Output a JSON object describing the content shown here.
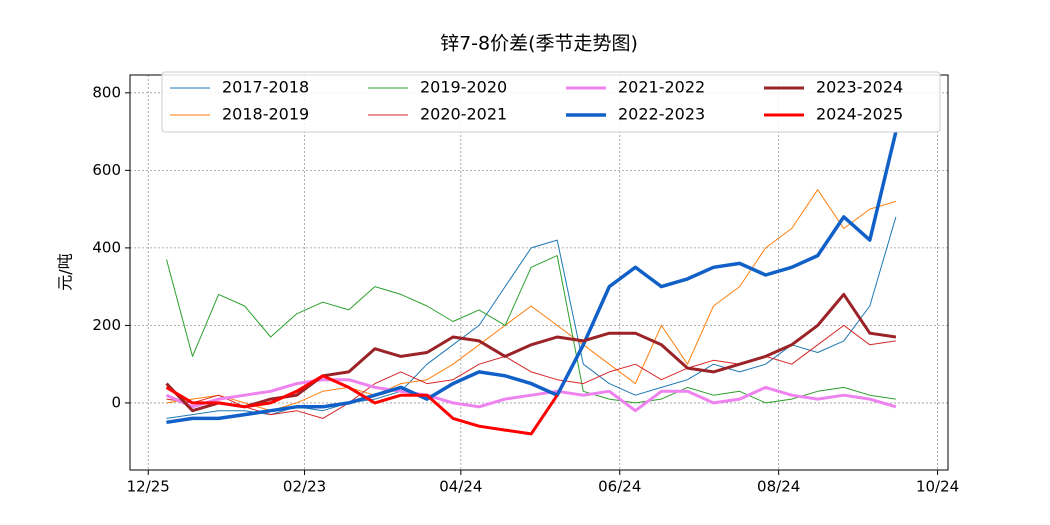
{
  "chart_data": {
    "type": "line",
    "title": "锌7-8价差(季节走势图)",
    "y_label": "元/吨",
    "x": [
      7,
      17,
      27,
      37,
      47,
      57,
      67,
      77,
      87,
      97,
      107,
      117,
      127,
      137,
      147,
      157,
      167,
      177,
      187,
      197,
      207,
      217,
      227,
      237,
      247,
      257,
      267,
      277,
      287
    ],
    "xlim": [
      -7,
      307
    ],
    "xticks": [
      {
        "value": 0,
        "label": "12/25"
      },
      {
        "value": 60,
        "label": "02/23"
      },
      {
        "value": 120,
        "label": "04/24"
      },
      {
        "value": 181,
        "label": "06/24"
      },
      {
        "value": 242,
        "label": "08/24"
      },
      {
        "value": 303,
        "label": "10/24"
      }
    ],
    "ylim": [
      -173,
      846
    ],
    "yticks": [
      0,
      200,
      400,
      600,
      800
    ],
    "grid": true,
    "legend": "upper center",
    "series": [
      {
        "name": "2017-2018",
        "color": "#1f77b4",
        "linewidth": 1,
        "values": [
          -40,
          -30,
          -20,
          -20,
          -30,
          -10,
          -20,
          0,
          10,
          30,
          100,
          150,
          200,
          300,
          400,
          420,
          100,
          50,
          20,
          40,
          60,
          100,
          80,
          100,
          150,
          130,
          160,
          250,
          480
        ]
      },
      {
        "name": "2018-2019",
        "color": "#ff7f0e",
        "linewidth": 1,
        "values": [
          0,
          10,
          20,
          0,
          -20,
          0,
          30,
          40,
          20,
          50,
          60,
          100,
          150,
          200,
          250,
          200,
          150,
          100,
          50,
          200,
          100,
          250,
          300,
          400,
          450,
          550,
          450,
          500,
          520
        ]
      },
      {
        "name": "2019-2020",
        "color": "#2ca02c",
        "linewidth": 1,
        "values": [
          370,
          120,
          280,
          250,
          170,
          230,
          260,
          240,
          300,
          280,
          250,
          210,
          240,
          200,
          350,
          380,
          30,
          10,
          0,
          10,
          40,
          20,
          30,
          0,
          10,
          30,
          40,
          20,
          10
        ]
      },
      {
        "name": "2020-2021",
        "color": "#d62728",
        "linewidth": 1,
        "values": [
          10,
          0,
          20,
          -10,
          -30,
          -20,
          -40,
          0,
          50,
          80,
          50,
          60,
          100,
          120,
          80,
          60,
          50,
          80,
          100,
          60,
          90,
          110,
          100,
          120,
          100,
          150,
          200,
          150,
          160
        ]
      },
      {
        "name": "2021-2022",
        "color": "#ee82ee",
        "linewidth": 3,
        "values": [
          20,
          -10,
          10,
          20,
          30,
          50,
          60,
          60,
          40,
          30,
          20,
          0,
          -10,
          10,
          20,
          30,
          20,
          30,
          -20,
          30,
          30,
          0,
          10,
          40,
          20,
          10,
          20,
          10,
          -10
        ]
      },
      {
        "name": "2022-2023",
        "color": "#1060c8",
        "linewidth": 3.5,
        "values": [
          -50,
          -40,
          -40,
          -30,
          -20,
          -10,
          -10,
          0,
          20,
          40,
          10,
          50,
          80,
          70,
          50,
          20,
          150,
          300,
          350,
          300,
          320,
          350,
          360,
          330,
          350,
          380,
          480,
          420,
          700
        ]
      },
      {
        "name": "2023-2024",
        "color": "#9b2226",
        "linewidth": 3,
        "values": [
          50,
          -20,
          0,
          -10,
          10,
          20,
          70,
          80,
          140,
          120,
          130,
          170,
          160,
          120,
          150,
          170,
          160,
          180,
          180,
          150,
          90,
          80,
          100,
          120,
          150,
          200,
          280,
          180,
          170
        ]
      },
      {
        "name": "2024-2025",
        "color": "#ff0000",
        "linewidth": 3,
        "values": [
          40,
          0,
          0,
          -10,
          0,
          30,
          70,
          40,
          0,
          20,
          20,
          -40,
          -60,
          -70,
          -80,
          20,
          null,
          null,
          null,
          null,
          null,
          null,
          null,
          null,
          null,
          null,
          null,
          null,
          null
        ]
      }
    ]
  }
}
